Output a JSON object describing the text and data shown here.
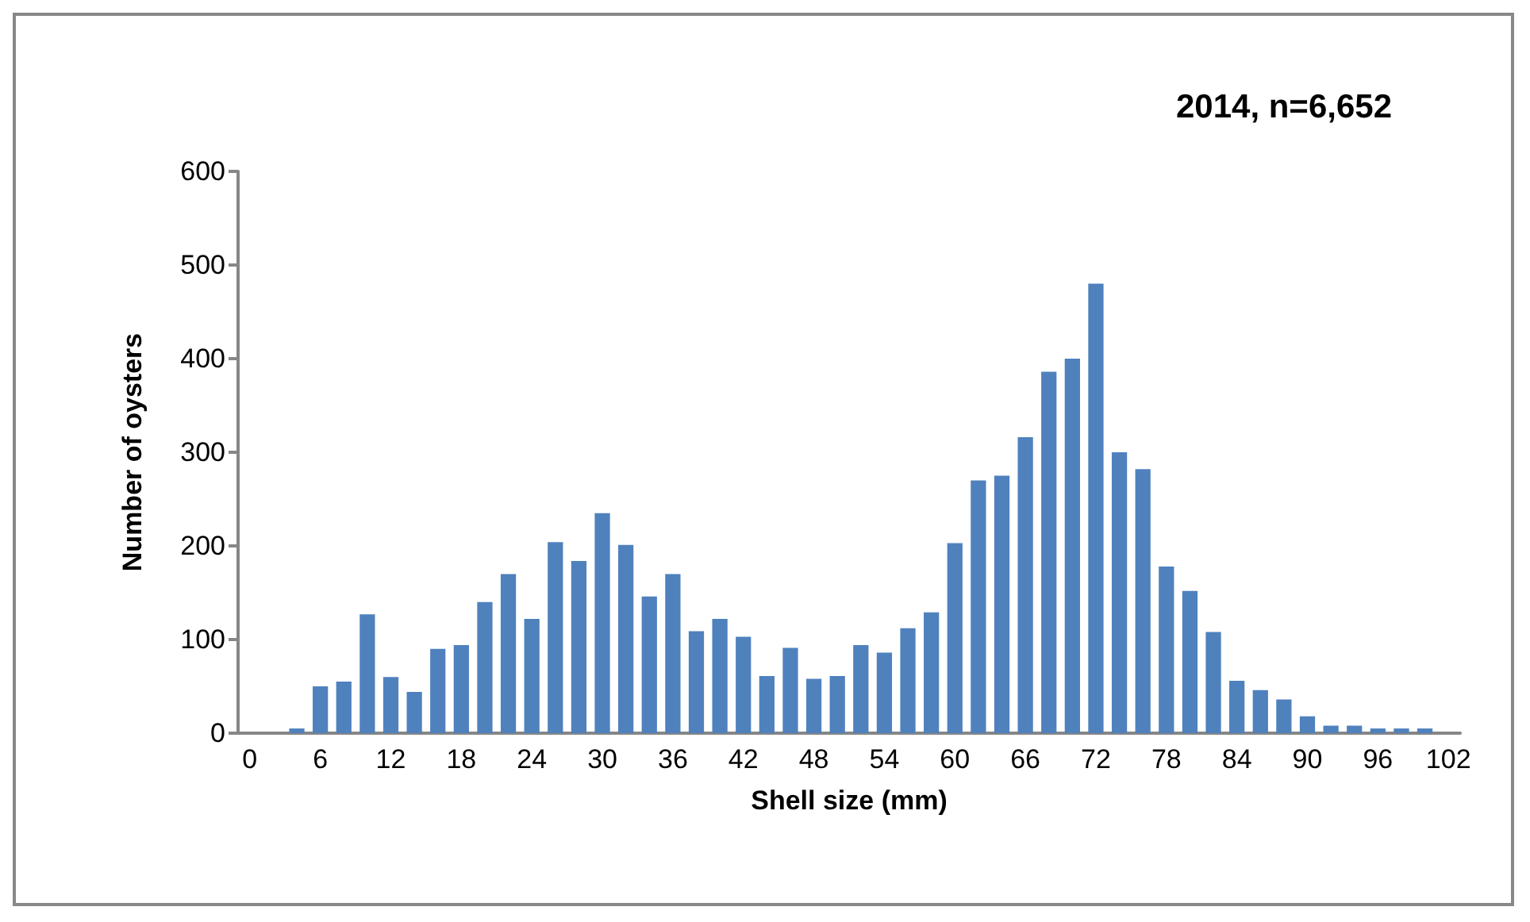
{
  "chart_data": {
    "type": "bar",
    "title": "2014, n=6,652",
    "xlabel": "Shell size (mm)",
    "ylabel": "Number of oysters",
    "categories": [
      "0",
      null,
      null,
      "6",
      null,
      null,
      "12",
      null,
      null,
      "18",
      null,
      null,
      "24",
      null,
      null,
      "30",
      null,
      null,
      "36",
      null,
      null,
      "42",
      null,
      null,
      "48",
      null,
      null,
      "54",
      null,
      null,
      "60",
      null,
      null,
      "66",
      null,
      null,
      "72",
      null,
      null,
      "78",
      null,
      null,
      "84",
      null,
      null,
      "90",
      null,
      null,
      "96",
      null,
      null,
      "102"
    ],
    "values": [
      0,
      0,
      5,
      50,
      55,
      127,
      60,
      44,
      90,
      94,
      140,
      170,
      122,
      204,
      184,
      235,
      201,
      146,
      170,
      109,
      122,
      103,
      61,
      91,
      58,
      61,
      94,
      86,
      112,
      129,
      203,
      270,
      275,
      316,
      386,
      400,
      480,
      300,
      282,
      178,
      152,
      108,
      56,
      46,
      36,
      18,
      8,
      8,
      5,
      5,
      5,
      0
    ],
    "color": "#4f81bd",
    "ylim": [
      0,
      600
    ],
    "yticks": [
      0,
      100,
      200,
      300,
      400,
      500,
      600
    ],
    "grid": false
  }
}
